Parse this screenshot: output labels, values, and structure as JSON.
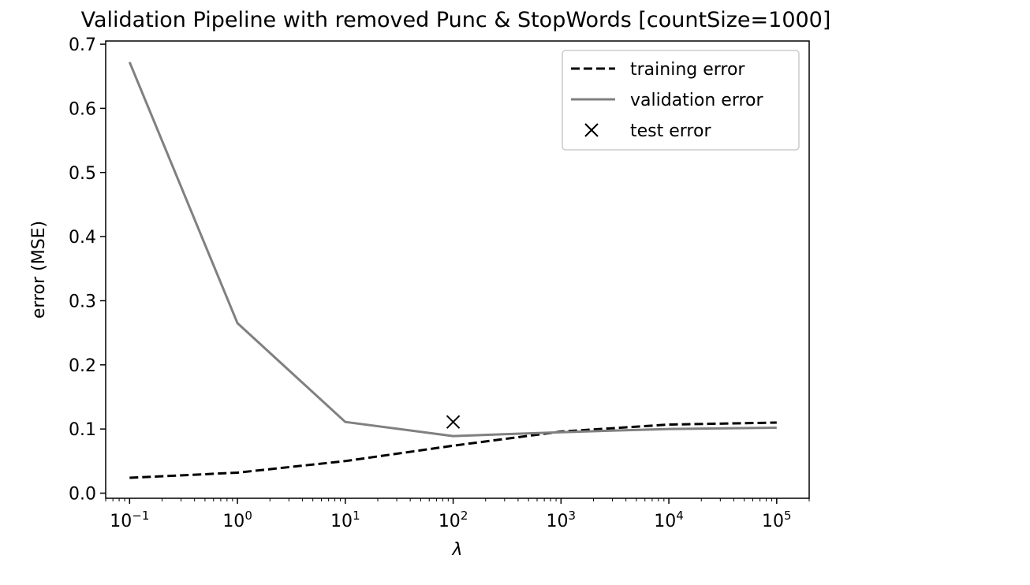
{
  "chart_data": {
    "type": "line",
    "title": "Validation Pipeline with removed Punc & StopWords [countSize=1000]",
    "xlabel": "λ",
    "ylabel": "error (MSE)",
    "xscale": "log",
    "xlim": [
      0.06,
      200000
    ],
    "ylim": [
      -0.008,
      0.705
    ],
    "yticks": [
      "0.0",
      "0.1",
      "0.2",
      "0.3",
      "0.4",
      "0.5",
      "0.6",
      "0.7"
    ],
    "xticks": [
      {
        "base": "10",
        "exp": "−1"
      },
      {
        "base": "10",
        "exp": "0"
      },
      {
        "base": "10",
        "exp": "1"
      },
      {
        "base": "10",
        "exp": "2"
      },
      {
        "base": "10",
        "exp": "3"
      },
      {
        "base": "10",
        "exp": "4"
      },
      {
        "base": "10",
        "exp": "5"
      }
    ],
    "x": [
      0.1,
      1,
      10,
      100,
      1000,
      10000,
      100000
    ],
    "series": [
      {
        "name": "training error",
        "style": "dashed",
        "color": "#000000",
        "values": [
          0.024,
          0.032,
          0.05,
          0.074,
          0.096,
          0.107,
          0.11
        ]
      },
      {
        "name": "validation error",
        "style": "solid",
        "color": "#808080",
        "values": [
          0.672,
          0.265,
          0.111,
          0.089,
          0.095,
          0.1,
          0.102
        ]
      },
      {
        "name": "test error",
        "style": "marker-x",
        "color": "#000000",
        "points": [
          {
            "x": 100,
            "y": 0.111
          }
        ]
      }
    ],
    "legend_position": "top-right",
    "grid": false
  }
}
